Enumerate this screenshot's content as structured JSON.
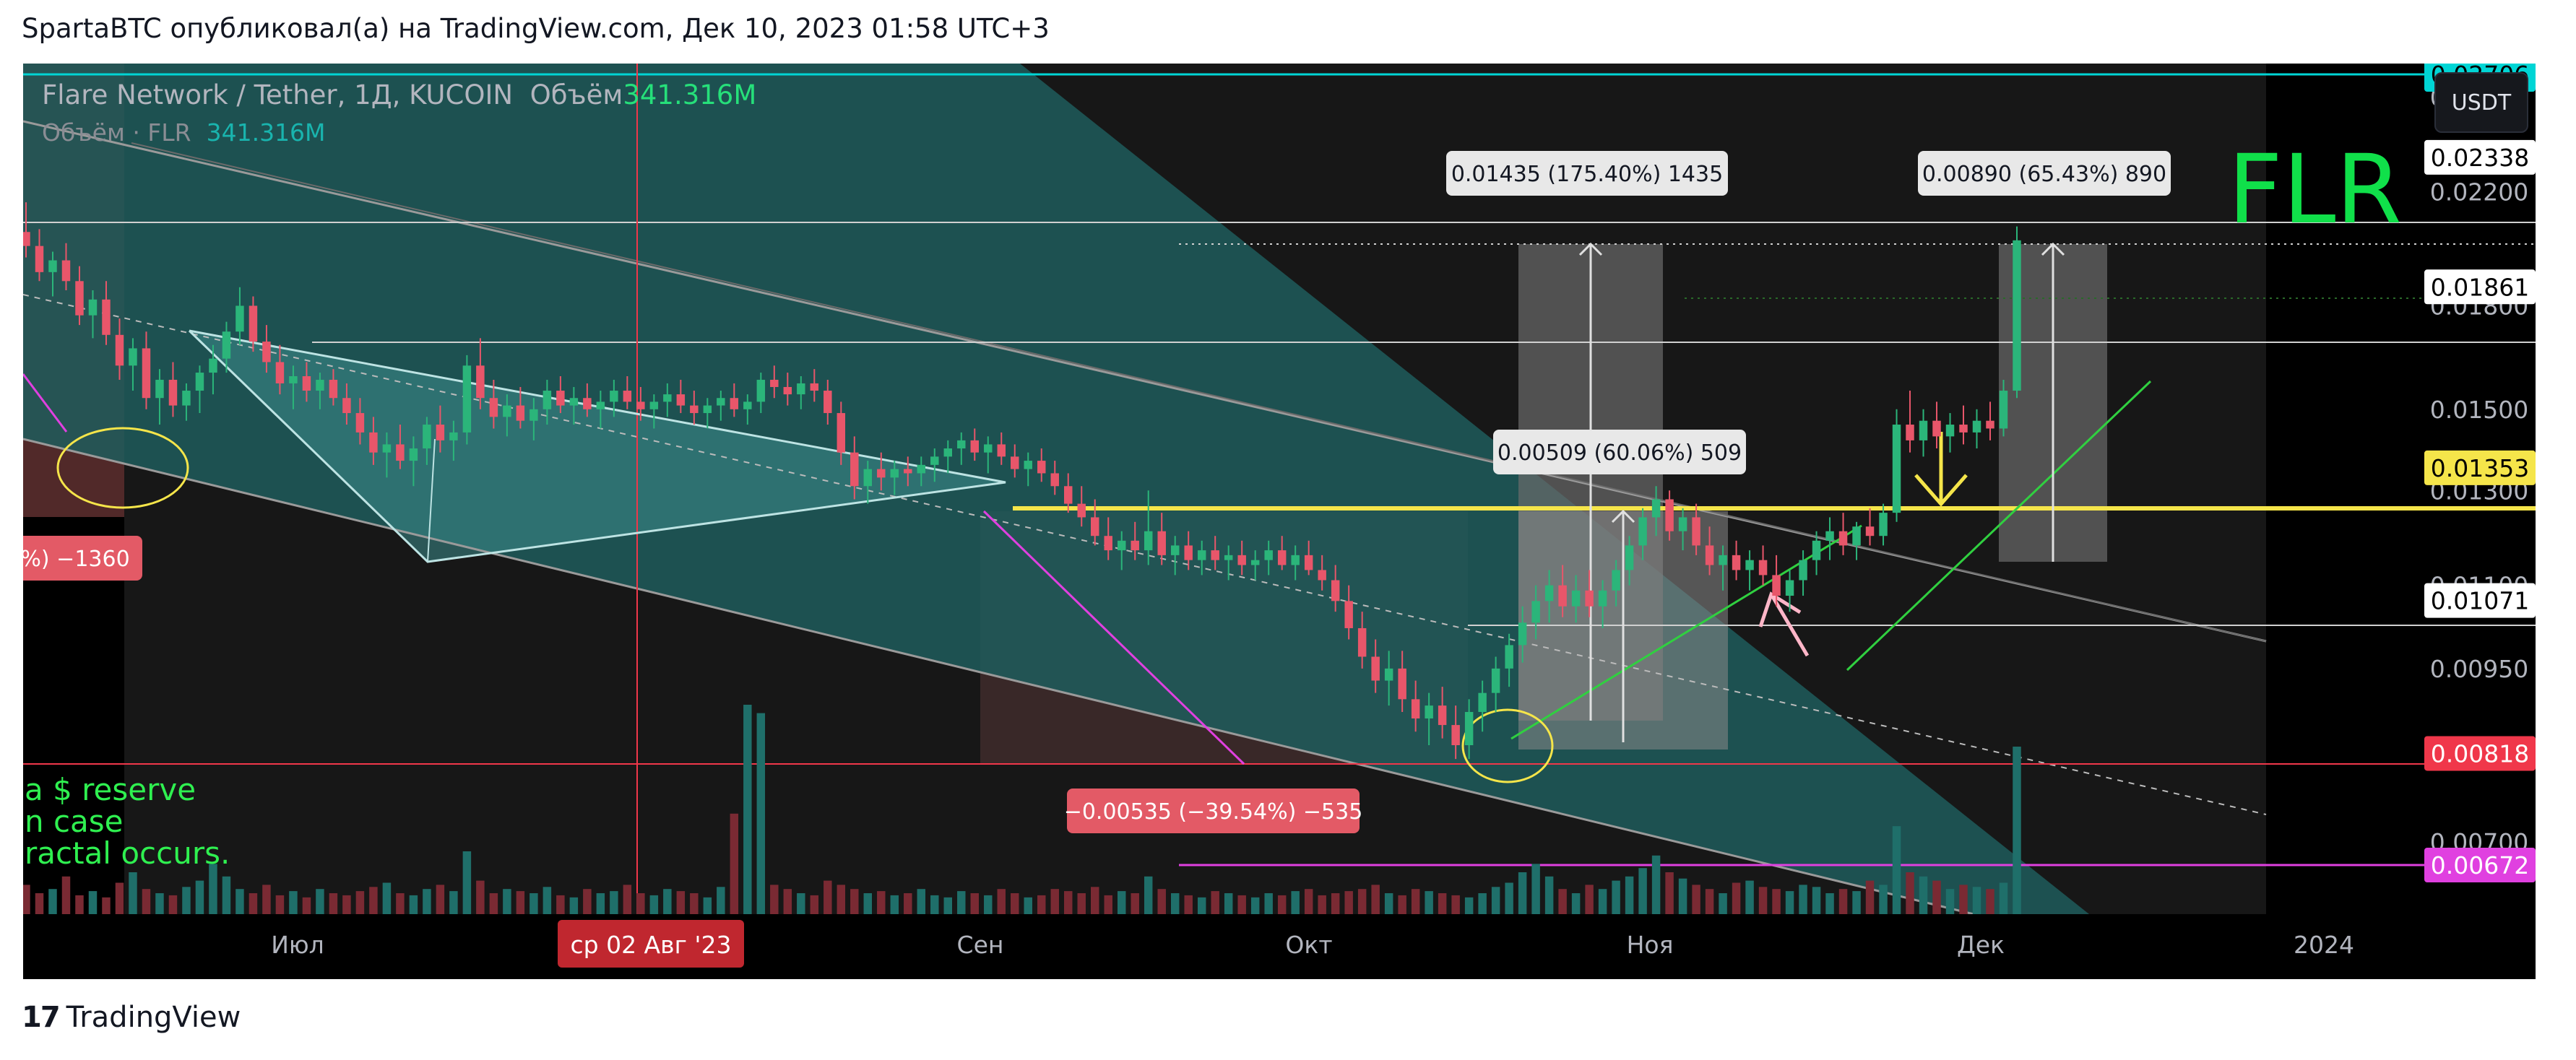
{
  "caption": "SpartaBTC опубликовал(а) на TradingView.com, Дек 10, 2023 01:58 UTC+3",
  "symbol": {
    "title": "Flare Network / Tether, 1Д, KUCOIN",
    "volume_label": "Объём",
    "volume_value": "341.316M",
    "volume_legend_label": "Объём · FLR",
    "volume_legend_value": "341.316M"
  },
  "quote_button": "USDT",
  "big_label": "FLR",
  "note_lines": [
    "a $ reserve",
    "n case",
    "ractal occurs."
  ],
  "footer_brand": "TradingView",
  "footer_mark": "17",
  "chart_data": {
    "type": "candlestick",
    "y_axis_ticks": [
      "0.02600",
      "0.02200",
      "0.01800",
      "0.01500",
      "0.01300",
      "0.01100",
      "0.00950",
      "0.00818",
      "0.00700"
    ],
    "x_axis_ticks": [
      "Июл",
      "Сен",
      "Окт",
      "Ноя",
      "Дек",
      "2024"
    ],
    "x_crosshair_label": "ср 02 Авг '23",
    "price_labels": [
      {
        "value": "0.02706",
        "color": "#00d5d5",
        "text_color": "#000000"
      },
      {
        "value": "0.02338",
        "color": "#ffffff",
        "text_color": "#000000"
      },
      {
        "value": "0.01861",
        "color": "#ffffff",
        "text_color": "#000000"
      },
      {
        "value": "0.01353",
        "color": "#f5e54a",
        "text_color": "#000000"
      },
      {
        "value": "0.01071",
        "color": "#ffffff",
        "text_color": "#000000"
      },
      {
        "value": "0.00818",
        "color": "#f0374a",
        "text_color": "#ffffff"
      },
      {
        "value": "0.00672",
        "color": "#e040e0",
        "text_color": "#ffffff"
      }
    ],
    "measure_labels": [
      {
        "text": "0.01435 (175.40%) 1435",
        "style": "light"
      },
      {
        "text": "0.00890 (65.43%) 890",
        "style": "light"
      },
      {
        "text": "0.00509 (60.06%) 509",
        "style": "light"
      },
      {
        "text": "−0.00535 (−39.54%) −535",
        "style": "red"
      },
      {
        "text": "5%) −1360",
        "style": "red"
      }
    ],
    "candles": [
      [
        0.0205,
        0.0216,
        0.0196,
        0.02
      ],
      [
        0.02,
        0.0206,
        0.0188,
        0.0191
      ],
      [
        0.0191,
        0.0198,
        0.0183,
        0.0195
      ],
      [
        0.0195,
        0.0201,
        0.0185,
        0.0188
      ],
      [
        0.0188,
        0.0193,
        0.0174,
        0.0177
      ],
      [
        0.0177,
        0.0185,
        0.017,
        0.0182
      ],
      [
        0.0182,
        0.0188,
        0.0168,
        0.0171
      ],
      [
        0.0171,
        0.0176,
        0.0158,
        0.0162
      ],
      [
        0.0162,
        0.017,
        0.0155,
        0.0167
      ],
      [
        0.0167,
        0.0172,
        0.015,
        0.0153
      ],
      [
        0.0153,
        0.0161,
        0.0146,
        0.0158
      ],
      [
        0.0158,
        0.0163,
        0.0148,
        0.0151
      ],
      [
        0.0151,
        0.0157,
        0.0147,
        0.0155
      ],
      [
        0.0155,
        0.0162,
        0.0149,
        0.016
      ],
      [
        0.016,
        0.0168,
        0.0154,
        0.0164
      ],
      [
        0.0164,
        0.0175,
        0.016,
        0.0172
      ],
      [
        0.0172,
        0.0186,
        0.0168,
        0.018
      ],
      [
        0.018,
        0.0183,
        0.0166,
        0.0169
      ],
      [
        0.0169,
        0.0174,
        0.016,
        0.0163
      ],
      [
        0.0163,
        0.0168,
        0.0154,
        0.0157
      ],
      [
        0.0157,
        0.0162,
        0.015,
        0.0159
      ],
      [
        0.0159,
        0.0163,
        0.0152,
        0.0155
      ],
      [
        0.0155,
        0.016,
        0.015,
        0.0158
      ],
      [
        0.0158,
        0.0161,
        0.0151,
        0.0153
      ],
      [
        0.0153,
        0.0157,
        0.0146,
        0.0149
      ],
      [
        0.0149,
        0.0153,
        0.0141,
        0.0144
      ],
      [
        0.0144,
        0.0148,
        0.0136,
        0.0139
      ],
      [
        0.0139,
        0.0144,
        0.0133,
        0.0141
      ],
      [
        0.0141,
        0.0146,
        0.0135,
        0.0137
      ],
      [
        0.0137,
        0.0143,
        0.0131,
        0.014
      ],
      [
        0.014,
        0.0148,
        0.0136,
        0.0146
      ],
      [
        0.0146,
        0.0151,
        0.0139,
        0.0142
      ],
      [
        0.0142,
        0.0147,
        0.0137,
        0.0144
      ],
      [
        0.0144,
        0.0165,
        0.0141,
        0.0162
      ],
      [
        0.0162,
        0.017,
        0.015,
        0.0153
      ],
      [
        0.0153,
        0.0158,
        0.0145,
        0.0148
      ],
      [
        0.0148,
        0.0154,
        0.0143,
        0.0151
      ],
      [
        0.0151,
        0.0156,
        0.0145,
        0.0147
      ],
      [
        0.0147,
        0.0153,
        0.0142,
        0.015
      ],
      [
        0.015,
        0.0158,
        0.0146,
        0.0155
      ],
      [
        0.0155,
        0.0159,
        0.0149,
        0.0151
      ],
      [
        0.0151,
        0.0156,
        0.0146,
        0.0153
      ],
      [
        0.0153,
        0.0157,
        0.0148,
        0.015
      ],
      [
        0.015,
        0.0155,
        0.0145,
        0.0152
      ],
      [
        0.0152,
        0.0158,
        0.0148,
        0.0155
      ],
      [
        0.0155,
        0.0159,
        0.015,
        0.0152
      ],
      [
        0.0152,
        0.0156,
        0.0147,
        0.015
      ],
      [
        0.015,
        0.0154,
        0.0145,
        0.0152
      ],
      [
        0.0152,
        0.0157,
        0.0148,
        0.0154
      ],
      [
        0.0154,
        0.0158,
        0.0149,
        0.0151
      ],
      [
        0.0151,
        0.0155,
        0.0146,
        0.0149
      ],
      [
        0.0149,
        0.0153,
        0.0145,
        0.0151
      ],
      [
        0.0151,
        0.0155,
        0.0147,
        0.0153
      ],
      [
        0.0153,
        0.0157,
        0.0148,
        0.015
      ],
      [
        0.015,
        0.0154,
        0.0146,
        0.0152
      ],
      [
        0.0152,
        0.016,
        0.0149,
        0.0158
      ],
      [
        0.0158,
        0.0162,
        0.0153,
        0.0156
      ],
      [
        0.0156,
        0.016,
        0.0151,
        0.0154
      ],
      [
        0.0154,
        0.0159,
        0.015,
        0.0157
      ],
      [
        0.0157,
        0.0161,
        0.0152,
        0.0155
      ],
      [
        0.0155,
        0.0158,
        0.0146,
        0.0149
      ],
      [
        0.0149,
        0.0152,
        0.0136,
        0.0139
      ],
      [
        0.0139,
        0.0143,
        0.0128,
        0.0131
      ],
      [
        0.0131,
        0.0137,
        0.0127,
        0.0135
      ],
      [
        0.0135,
        0.0139,
        0.013,
        0.0133
      ],
      [
        0.0133,
        0.0137,
        0.0129,
        0.0135
      ],
      [
        0.0135,
        0.0138,
        0.0131,
        0.0134
      ],
      [
        0.0134,
        0.0138,
        0.0131,
        0.0136
      ],
      [
        0.0136,
        0.014,
        0.0132,
        0.0138
      ],
      [
        0.0138,
        0.0142,
        0.0134,
        0.014
      ],
      [
        0.014,
        0.0144,
        0.0136,
        0.0142
      ],
      [
        0.0142,
        0.0145,
        0.0137,
        0.0139
      ],
      [
        0.0139,
        0.0143,
        0.0134,
        0.0141
      ],
      [
        0.0141,
        0.0144,
        0.0136,
        0.0138
      ],
      [
        0.0138,
        0.0141,
        0.0133,
        0.0135
      ],
      [
        0.0135,
        0.0139,
        0.0131,
        0.0137
      ],
      [
        0.0137,
        0.014,
        0.0132,
        0.0134
      ],
      [
        0.0134,
        0.0137,
        0.0129,
        0.0131
      ],
      [
        0.0131,
        0.0134,
        0.0125,
        0.0127
      ],
      [
        0.0127,
        0.0131,
        0.0122,
        0.0124
      ],
      [
        0.0124,
        0.0128,
        0.0118,
        0.012
      ],
      [
        0.012,
        0.0124,
        0.0115,
        0.0117
      ],
      [
        0.0117,
        0.0121,
        0.0113,
        0.0119
      ],
      [
        0.0119,
        0.0123,
        0.0115,
        0.0117
      ],
      [
        0.0117,
        0.013,
        0.0114,
        0.0121
      ],
      [
        0.0121,
        0.0125,
        0.0114,
        0.0116
      ],
      [
        0.0116,
        0.012,
        0.0112,
        0.0118
      ],
      [
        0.0118,
        0.0121,
        0.0113,
        0.0115
      ],
      [
        0.0115,
        0.0119,
        0.0112,
        0.0117
      ],
      [
        0.0117,
        0.012,
        0.0113,
        0.0115
      ],
      [
        0.0115,
        0.0118,
        0.0111,
        0.0116
      ],
      [
        0.0116,
        0.0119,
        0.0112,
        0.0114
      ],
      [
        0.0114,
        0.0117,
        0.0111,
        0.0115
      ],
      [
        0.0115,
        0.0119,
        0.0112,
        0.0117
      ],
      [
        0.0117,
        0.012,
        0.0113,
        0.0114
      ],
      [
        0.0114,
        0.0118,
        0.0111,
        0.0116
      ],
      [
        0.0116,
        0.0119,
        0.0112,
        0.0113
      ],
      [
        0.0113,
        0.0116,
        0.0109,
        0.0111
      ],
      [
        0.0111,
        0.0114,
        0.0105,
        0.0107
      ],
      [
        0.0107,
        0.011,
        0.01,
        0.0102
      ],
      [
        0.0102,
        0.0105,
        0.0095,
        0.0097
      ],
      [
        0.0097,
        0.01,
        0.0091,
        0.0093
      ],
      [
        0.0093,
        0.0098,
        0.0089,
        0.0095
      ],
      [
        0.0095,
        0.0098,
        0.0088,
        0.009
      ],
      [
        0.009,
        0.0093,
        0.0085,
        0.0087
      ],
      [
        0.0087,
        0.0091,
        0.0083,
        0.0089
      ],
      [
        0.0089,
        0.0092,
        0.0084,
        0.0086
      ],
      [
        0.0086,
        0.0089,
        0.0081,
        0.0083
      ],
      [
        0.0083,
        0.009,
        0.0081,
        0.0088
      ],
      [
        0.0088,
        0.0093,
        0.0085,
        0.0091
      ],
      [
        0.0091,
        0.0097,
        0.0088,
        0.0095
      ],
      [
        0.0095,
        0.0101,
        0.0092,
        0.0099
      ],
      [
        0.0099,
        0.0106,
        0.0096,
        0.0103
      ],
      [
        0.0103,
        0.011,
        0.01,
        0.0107
      ],
      [
        0.0107,
        0.0113,
        0.0103,
        0.011
      ],
      [
        0.011,
        0.0114,
        0.0104,
        0.0106
      ],
      [
        0.0106,
        0.0112,
        0.0103,
        0.0109
      ],
      [
        0.0109,
        0.0113,
        0.0104,
        0.0106
      ],
      [
        0.0106,
        0.0111,
        0.0102,
        0.0109
      ],
      [
        0.0109,
        0.0115,
        0.0106,
        0.0113
      ],
      [
        0.0113,
        0.012,
        0.011,
        0.0118
      ],
      [
        0.0118,
        0.0126,
        0.0115,
        0.0124
      ],
      [
        0.0124,
        0.0131,
        0.012,
        0.0128
      ],
      [
        0.0128,
        0.013,
        0.0119,
        0.0121
      ],
      [
        0.0121,
        0.0126,
        0.0117,
        0.0124
      ],
      [
        0.0124,
        0.0127,
        0.0116,
        0.0118
      ],
      [
        0.0118,
        0.0122,
        0.0112,
        0.0114
      ],
      [
        0.0114,
        0.0118,
        0.0109,
        0.0116
      ],
      [
        0.0116,
        0.0119,
        0.0111,
        0.0113
      ],
      [
        0.0113,
        0.0117,
        0.0109,
        0.0115
      ],
      [
        0.0115,
        0.0118,
        0.011,
        0.0112
      ],
      [
        0.0112,
        0.0116,
        0.0106,
        0.0108
      ],
      [
        0.0108,
        0.0113,
        0.0105,
        0.0111
      ],
      [
        0.0111,
        0.0117,
        0.0108,
        0.0115
      ],
      [
        0.0115,
        0.0121,
        0.0112,
        0.0119
      ],
      [
        0.0119,
        0.0124,
        0.0115,
        0.0121
      ],
      [
        0.0121,
        0.0125,
        0.0116,
        0.0118
      ],
      [
        0.0118,
        0.0123,
        0.0115,
        0.0122
      ],
      [
        0.0122,
        0.0126,
        0.0118,
        0.012
      ],
      [
        0.012,
        0.0127,
        0.0118,
        0.0125
      ],
      [
        0.0125,
        0.015,
        0.0123,
        0.0146
      ],
      [
        0.0146,
        0.0155,
        0.0139,
        0.0142
      ],
      [
        0.0142,
        0.015,
        0.0138,
        0.0147
      ],
      [
        0.0147,
        0.0152,
        0.014,
        0.0143
      ],
      [
        0.0143,
        0.0149,
        0.0139,
        0.0146
      ],
      [
        0.0146,
        0.0151,
        0.0141,
        0.0144
      ],
      [
        0.0144,
        0.015,
        0.014,
        0.0147
      ],
      [
        0.0147,
        0.0152,
        0.0142,
        0.0145
      ],
      [
        0.0145,
        0.0158,
        0.0143,
        0.0155
      ],
      [
        0.0155,
        0.0207,
        0.0153,
        0.0202
      ]
    ],
    "volumes": [
      14,
      10,
      12,
      18,
      9,
      11,
      8,
      15,
      20,
      12,
      10,
      9,
      13,
      16,
      24,
      18,
      12,
      10,
      14,
      9,
      11,
      8,
      12,
      10,
      9,
      11,
      13,
      15,
      10,
      9,
      12,
      14,
      11,
      30,
      16,
      10,
      12,
      11,
      10,
      13,
      9,
      8,
      12,
      10,
      11,
      14,
      10,
      9,
      12,
      11,
      10,
      8,
      13,
      48,
      100,
      96,
      14,
      12,
      10,
      9,
      16,
      14,
      12,
      10,
      11,
      9,
      10,
      12,
      9,
      8,
      11,
      10,
      9,
      12,
      10,
      8,
      9,
      12,
      11,
      10,
      13,
      9,
      11,
      10,
      18,
      12,
      10,
      9,
      8,
      11,
      10,
      9,
      8,
      10,
      9,
      11,
      12,
      9,
      10,
      11,
      12,
      14,
      10,
      9,
      12,
      11,
      10,
      9,
      8,
      10,
      13,
      15,
      20,
      24,
      18,
      12,
      10,
      14,
      12,
      16,
      18,
      22,
      28,
      20,
      17,
      14,
      12,
      10,
      15,
      16,
      13,
      12,
      11,
      14,
      13,
      10,
      12,
      11,
      16,
      14,
      42,
      20,
      18,
      16,
      12,
      14,
      13,
      12,
      15,
      80
    ]
  }
}
